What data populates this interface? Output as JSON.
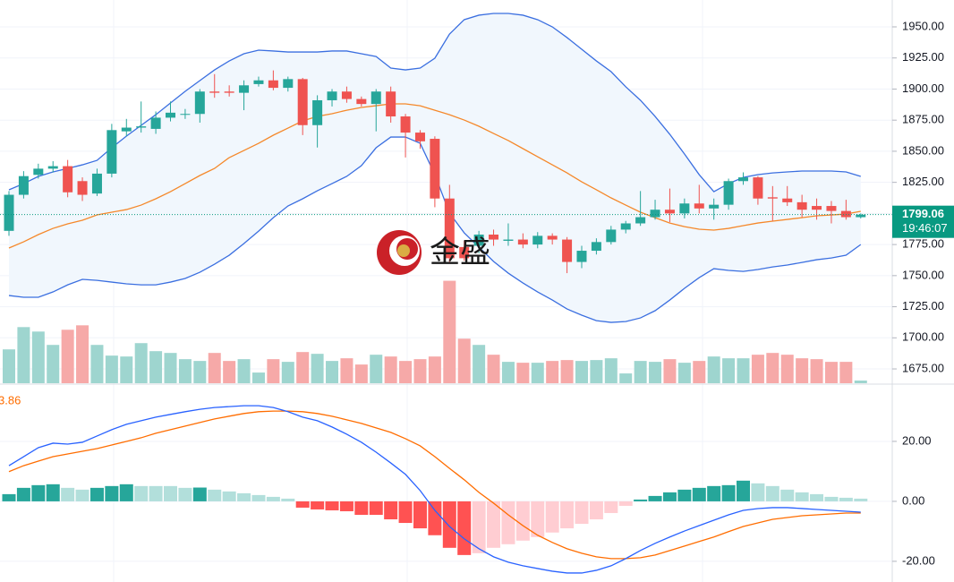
{
  "chart_data": [
    {
      "type": "candlestick",
      "open": [
        1786,
        1815,
        1831,
        1836,
        1838,
        1826,
        1816,
        1832,
        1866,
        1869,
        1868,
        1877,
        1880,
        1880,
        1898,
        1898,
        1897,
        1904,
        1907,
        1901,
        1908,
        1871,
        1891,
        1898,
        1892,
        1888,
        1898,
        1878,
        1865,
        1860,
        1812,
        1773,
        1774,
        1783,
        1778,
        1779,
        1775,
        1782,
        1779,
        1761,
        1770,
        1777,
        1787,
        1792,
        1797,
        1803,
        1800,
        1808,
        1804,
        1807,
        1826,
        1829,
        1813,
        1812,
        1809,
        1806,
        1806,
        1802,
        1797
      ],
      "high": [
        1818,
        1834,
        1840,
        1842,
        1843,
        1829,
        1836,
        1872,
        1876,
        1890,
        1882,
        1890,
        1884,
        1900,
        1912,
        1903,
        1907,
        1910,
        1915,
        1910,
        1909,
        1895,
        1900,
        1902,
        1894,
        1900,
        1902,
        1880,
        1867,
        1862,
        1823,
        1778,
        1786,
        1787,
        1792,
        1784,
        1785,
        1784,
        1781,
        1774,
        1780,
        1790,
        1794,
        1818,
        1811,
        1820,
        1812,
        1823,
        1812,
        1828,
        1833,
        1830,
        1822,
        1822,
        1815,
        1812,
        1810,
        1811,
        1800
      ],
      "low": [
        1782,
        1812,
        1828,
        1833,
        1813,
        1810,
        1814,
        1829,
        1862,
        1865,
        1864,
        1874,
        1876,
        1873,
        1893,
        1894,
        1883,
        1902,
        1899,
        1898,
        1863,
        1853,
        1886,
        1889,
        1886,
        1866,
        1873,
        1845,
        1852,
        1805,
        1760,
        1762,
        1768,
        1774,
        1774,
        1772,
        1772,
        1775,
        1752,
        1756,
        1767,
        1775,
        1784,
        1790,
        1795,
        1793,
        1796,
        1800,
        1795,
        1803,
        1823,
        1807,
        1794,
        1806,
        1797,
        1795,
        1792,
        1795,
        1796
      ],
      "close": [
        1815,
        1830,
        1836,
        1838,
        1817,
        1815,
        1832,
        1867,
        1869,
        1870,
        1877,
        1881,
        1880,
        1898,
        1897,
        1897,
        1903,
        1907,
        1901,
        1908,
        1871,
        1891,
        1898,
        1892,
        1888,
        1898,
        1878,
        1865,
        1858,
        1812,
        1764,
        1764,
        1783,
        1779,
        1779,
        1775,
        1782,
        1779,
        1761,
        1770,
        1777,
        1787,
        1792,
        1797,
        1803,
        1800,
        1808,
        1804,
        1807,
        1826,
        1829,
        1812,
        1812,
        1809,
        1803,
        1803,
        1802,
        1797,
        1799.06
      ],
      "volume": [
        38,
        63,
        58,
        43,
        60,
        65,
        43,
        31,
        30,
        45,
        36,
        34,
        27,
        25,
        34,
        25,
        27,
        12,
        27,
        24,
        35,
        33,
        25,
        28,
        21,
        32,
        30,
        25,
        27,
        30,
        115,
        50,
        43,
        32,
        24,
        23,
        23,
        25,
        26,
        25,
        26,
        28,
        11,
        25,
        24,
        27,
        23,
        25,
        30,
        28,
        28,
        32,
        34,
        32,
        28,
        27,
        24,
        24,
        3
      ],
      "volume_ylim": [
        0,
        400
      ],
      "bb_upper": [
        1819.0,
        1824.0,
        1829.8,
        1833.4,
        1836.2,
        1839.1,
        1842.7,
        1852.8,
        1862.2,
        1870.8,
        1879.4,
        1888.8,
        1898.2,
        1906.8,
        1915.4,
        1922.6,
        1928.4,
        1931.3,
        1930.6,
        1929.8,
        1929.8,
        1929.8,
        1930.6,
        1930.6,
        1928.4,
        1926.2,
        1916.9,
        1915.4,
        1916.9,
        1924.8,
        1944.2,
        1955.8,
        1959.4,
        1960.8,
        1960.8,
        1959.4,
        1955.8,
        1950.0,
        1941.4,
        1932.0,
        1922.6,
        1914.0,
        1901.8,
        1891.0,
        1878.0,
        1863.6,
        1847.8,
        1831.2,
        1817.5,
        1824.0,
        1829.0,
        1831.2,
        1832.6,
        1833.4,
        1834.1,
        1834.1,
        1834.1,
        1833.4,
        1829.8
      ],
      "bb_middle": [
        1772.2,
        1777.2,
        1783.0,
        1788.0,
        1791.6,
        1794.5,
        1798.8,
        1801.0,
        1803.1,
        1806.7,
        1811.8,
        1817.5,
        1824.0,
        1830.5,
        1836.2,
        1844.9,
        1850.6,
        1856.4,
        1862.9,
        1868.6,
        1874.4,
        1878.0,
        1880.2,
        1883.0,
        1885.2,
        1886.6,
        1888.1,
        1888.1,
        1886.6,
        1883.0,
        1879.4,
        1875.1,
        1870.1,
        1864.3,
        1858.6,
        1852.1,
        1845.6,
        1839.1,
        1832.6,
        1825.4,
        1819.0,
        1812.5,
        1806.7,
        1801.0,
        1796.6,
        1792.3,
        1789.4,
        1787.3,
        1786.6,
        1788.0,
        1790.2,
        1792.3,
        1793.8,
        1795.2,
        1796.6,
        1798.1,
        1798.8,
        1799.5,
        1801.7
      ],
      "bb_lower": [
        1734.0,
        1732.6,
        1732.6,
        1736.9,
        1742.6,
        1747.0,
        1746.2,
        1744.8,
        1743.4,
        1742.6,
        1742.6,
        1744.8,
        1747.7,
        1752.7,
        1759.2,
        1766.4,
        1775.8,
        1785.8,
        1796.6,
        1806.0,
        1811.8,
        1818.2,
        1824.0,
        1829.8,
        1838.4,
        1852.8,
        1861.4,
        1861.4,
        1856.4,
        1831.2,
        1800.2,
        1784.4,
        1772.9,
        1761.4,
        1752.0,
        1744.1,
        1736.9,
        1730.4,
        1723.2,
        1718.2,
        1713.8,
        1712.4,
        1713.1,
        1716.0,
        1721.8,
        1730.4,
        1739.8,
        1748.4,
        1755.6,
        1754.2,
        1753.4,
        1754.9,
        1757.0,
        1758.5,
        1760.6,
        1762.8,
        1764.2,
        1766.4,
        1775.0
      ],
      "up_color": "#26a69a",
      "down_color": "#ef5350",
      "volume_up_color": "#9ed5cf",
      "volume_down_color": "#f6a9a8",
      "band_color": "#3b6fe0",
      "middle_color": "#f5882a",
      "band_fill": "#f1f7fd",
      "ylim": [
        1663.5,
        1971.6
      ],
      "yticks": [
        {
          "value": 1675,
          "label": "1675.00"
        },
        {
          "value": 1700,
          "label": "1700.00"
        },
        {
          "value": 1725,
          "label": "1725.00"
        },
        {
          "value": 1750,
          "label": "1750.00"
        },
        {
          "value": 1775,
          "label": "1775.00"
        },
        {
          "value": 1800,
          "label": "1800.00"
        },
        {
          "value": 1825,
          "label": "1825.00"
        },
        {
          "value": 1850,
          "label": "1850.00"
        },
        {
          "value": 1875,
          "label": "1875.00"
        },
        {
          "value": 1900,
          "label": "1900.00"
        },
        {
          "value": 1925,
          "label": "1925.00"
        },
        {
          "value": 1950,
          "label": "1950.00"
        }
      ],
      "grid": true,
      "countdown": "19:46:07",
      "price_label_color": "#089981",
      "watermark": "金盛"
    },
    {
      "type": "macd",
      "histogram": [
        2.4,
        4.5,
        5.4,
        5.7,
        4.5,
        3.9,
        4.5,
        5.1,
        5.7,
        5.1,
        5.1,
        5.1,
        4.5,
        4.6,
        3.9,
        3.3,
        2.7,
        2.1,
        1.5,
        0.9,
        -2.1,
        -2.7,
        -3.0,
        -3.3,
        -4.5,
        -4.5,
        -6.0,
        -7.2,
        -9.0,
        -11.3,
        -15.5,
        -17.9,
        -17.3,
        -15.5,
        -14.3,
        -13.1,
        -11.9,
        -10.4,
        -9.0,
        -7.5,
        -6.0,
        -3.9,
        -1.5,
        0.6,
        1.8,
        3.0,
        3.9,
        4.5,
        5.1,
        5.4,
        6.9,
        6.0,
        5.1,
        3.9,
        3.0,
        2.4,
        1.5,
        1.2,
        0.9
      ],
      "macd": [
        11.9,
        14.9,
        17.9,
        19.4,
        19.1,
        19.7,
        21.8,
        23.9,
        25.7,
        26.9,
        28.1,
        29.0,
        29.9,
        30.7,
        31.3,
        31.6,
        31.9,
        31.9,
        31.3,
        29.9,
        28.1,
        26.9,
        24.8,
        22.4,
        19.7,
        16.4,
        12.8,
        9.0,
        3.6,
        -3.0,
        -8.4,
        -12.5,
        -15.8,
        -18.5,
        -20.3,
        -21.5,
        -22.4,
        -23.3,
        -23.9,
        -23.9,
        -23.0,
        -21.5,
        -19.1,
        -16.4,
        -14.0,
        -11.9,
        -9.9,
        -8.1,
        -6.3,
        -4.5,
        -3.0,
        -2.4,
        -2.1,
        -2.1,
        -2.4,
        -2.7,
        -3.0,
        -3.3,
        -3.6
      ],
      "signal": [
        9.9,
        11.9,
        13.4,
        14.9,
        15.8,
        16.7,
        17.6,
        18.8,
        20.0,
        21.2,
        22.7,
        23.9,
        25.1,
        26.3,
        27.5,
        28.4,
        29.3,
        29.9,
        30.1,
        30.1,
        29.9,
        29.3,
        28.4,
        27.2,
        26.0,
        24.5,
        23.0,
        20.9,
        18.5,
        14.9,
        11.0,
        7.2,
        3.0,
        -0.6,
        -4.5,
        -8.1,
        -11.3,
        -13.7,
        -15.8,
        -17.3,
        -18.5,
        -19.1,
        -19.1,
        -18.8,
        -17.9,
        -16.4,
        -14.9,
        -13.4,
        -11.9,
        -10.1,
        -8.4,
        -7.2,
        -6.0,
        -5.4,
        -4.8,
        -4.5,
        -4.2,
        -3.9,
        -3.9
      ],
      "macd_color": "#2962ff",
      "signal_color": "#ff6d00",
      "hist_colors": {
        "rise_up": "#26a69a",
        "fall_up": "#b2dfdb",
        "fall_down": "#ff5252",
        "rise_down": "#ffcdd2"
      },
      "ylim": [
        -26.9,
        38.8
      ],
      "yticks": [
        {
          "value": -20,
          "label": "-20.00"
        },
        {
          "value": 0,
          "label": "0.00"
        },
        {
          "value": 20,
          "label": "20.00"
        }
      ],
      "grid": true,
      "annotation": "3.86"
    }
  ]
}
